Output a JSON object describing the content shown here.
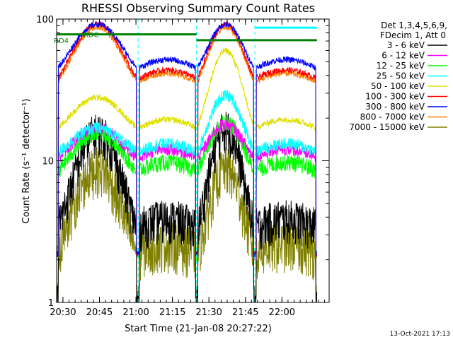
{
  "chart_data": {
    "type": "line",
    "title": "RHESSI Observing Summary Count Rates",
    "xlabel": "Start Time (21-Jan-08 20:27:22)",
    "ylabel": "Count Rate (s⁻¹ detector⁻¹)",
    "x_axis": {
      "unit": "minutes after 20:27:22",
      "range": [
        0,
        112
      ],
      "tick_labels": [
        "20:30",
        "20:45",
        "21:00",
        "21:15",
        "21:30",
        "21:45",
        "22:00"
      ],
      "tick_values": [
        2.6,
        17.6,
        32.6,
        47.6,
        62.6,
        77.6,
        92.6
      ]
    },
    "y_axis": {
      "scale": "log",
      "range": [
        1,
        100
      ],
      "tick_labels": [
        "1",
        "10",
        "100"
      ],
      "tick_values": [
        1,
        10,
        100
      ]
    },
    "grid": false,
    "legend": {
      "placement": "right",
      "header_lines": [
        "Det 1,3,4,5,6,9,",
        "FDecim 1, Att 0"
      ],
      "entries": [
        "3 - 6 keV",
        "6 - 12 keV",
        "12 - 25 keV",
        "25 - 50 keV",
        "50 - 100 keV",
        "100 - 300 keV",
        "300 - 800 keV",
        "800 - 7000 keV",
        "7000 - 15000 keV"
      ],
      "colors": [
        "#000000",
        "#ff00ff",
        "#00ff00",
        "#00ffff",
        "#e0e000",
        "#ff0000",
        "#0000ff",
        "#ff8000",
        "#808000"
      ]
    },
    "annotations": {
      "saa_label": "RD4",
      "eclipse_label": "RDC",
      "footer": "13-Oct-2021 17:13"
    },
    "orbit_segments": [
      [
        0,
        33.5
      ],
      [
        33.5,
        57.5
      ],
      [
        57.5,
        81.5
      ],
      [
        81.5,
        107
      ]
    ],
    "series": [
      {
        "name": "3 - 6 keV",
        "color": "#000000",
        "base": 3.4,
        "peak": [
          16,
          17
        ],
        "lo": 1.0,
        "noise": 0.35
      },
      {
        "name": "6 - 12 keV",
        "color": "#ff00ff",
        "base": 10.5,
        "peak": [
          17,
          18
        ],
        "lo": 2.2,
        "noise": 0.1
      },
      {
        "name": "12 - 25 keV",
        "color": "#00ff00",
        "base": 8.5,
        "peak": [
          16,
          19
        ],
        "lo": 2.2,
        "noise": 0.14
      },
      {
        "name": "25 - 50 keV",
        "color": "#00ffff",
        "base": 11.5,
        "peak": [
          17,
          29
        ],
        "lo": 2.2,
        "noise": 0.1
      },
      {
        "name": "50 - 100 keV",
        "color": "#e0e000",
        "base": 17.0,
        "peak": [
          28,
          60
        ],
        "lo": 2.2,
        "noise": 0.05
      },
      {
        "name": "100 - 300 keV",
        "color": "#ff0000",
        "base": 38.0,
        "peak": [
          92,
          92
        ],
        "lo": 2.2,
        "noise": 0.05
      },
      {
        "name": "300 - 800 keV",
        "color": "#0000ff",
        "base": 45.0,
        "peak": [
          92,
          92
        ],
        "lo": 2.2,
        "noise": 0.05
      },
      {
        "name": "800 - 7000 keV",
        "color": "#ff8000",
        "base": 36.0,
        "peak": [
          88,
          88
        ],
        "lo": 2.2,
        "noise": 0.05
      },
      {
        "name": "7000 - 15000 keV",
        "color": "#808000",
        "base": 2.3,
        "peak": [
          9,
          9
        ],
        "lo": 1.0,
        "noise": 0.4
      }
    ]
  }
}
